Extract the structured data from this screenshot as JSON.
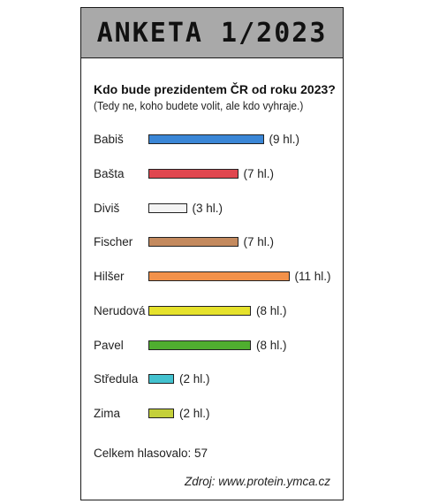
{
  "header": {
    "title": "Anketa 1/2023"
  },
  "question": "Kdo bude prezidentem ČR od roku 2023?",
  "subquestion": "(Tedy ne, koho budete volit, ale kdo vyhraje.)",
  "footer": {
    "total": "Celkem hlasovalo: 57",
    "source": "Zdroj: www.protein.ymca.cz"
  },
  "chart_data": {
    "type": "bar",
    "orientation": "horizontal",
    "title": "Kdo bude prezidentem ČR od roku 2023?",
    "subtitle": "(Tedy ne, koho budete volit, ale kdo vyhraje.)",
    "categories": [
      "Babiš",
      "Bašta",
      "Diviš",
      "Fischer",
      "Hilšer",
      "Nerudová",
      "Pavel",
      "Středula",
      "Zima"
    ],
    "values": [
      9,
      7,
      3,
      7,
      11,
      8,
      8,
      2,
      2
    ],
    "value_labels": [
      "(9 hl.)",
      "(7 hl.)",
      "(3 hl.)",
      "(7 hl.)",
      "(11 hl.)",
      "(8 hl.)",
      "(8 hl.)",
      "(2 hl.)",
      "(2 hl.)"
    ],
    "colors": [
      "#3a86d6",
      "#e0474f",
      "#f4f4f4",
      "#c48a5e",
      "#f2914a",
      "#e6e22c",
      "#4fae2f",
      "#43c2cf",
      "#c4d03a"
    ],
    "xlim": [
      0,
      11
    ],
    "grid": false,
    "legend": "none"
  }
}
